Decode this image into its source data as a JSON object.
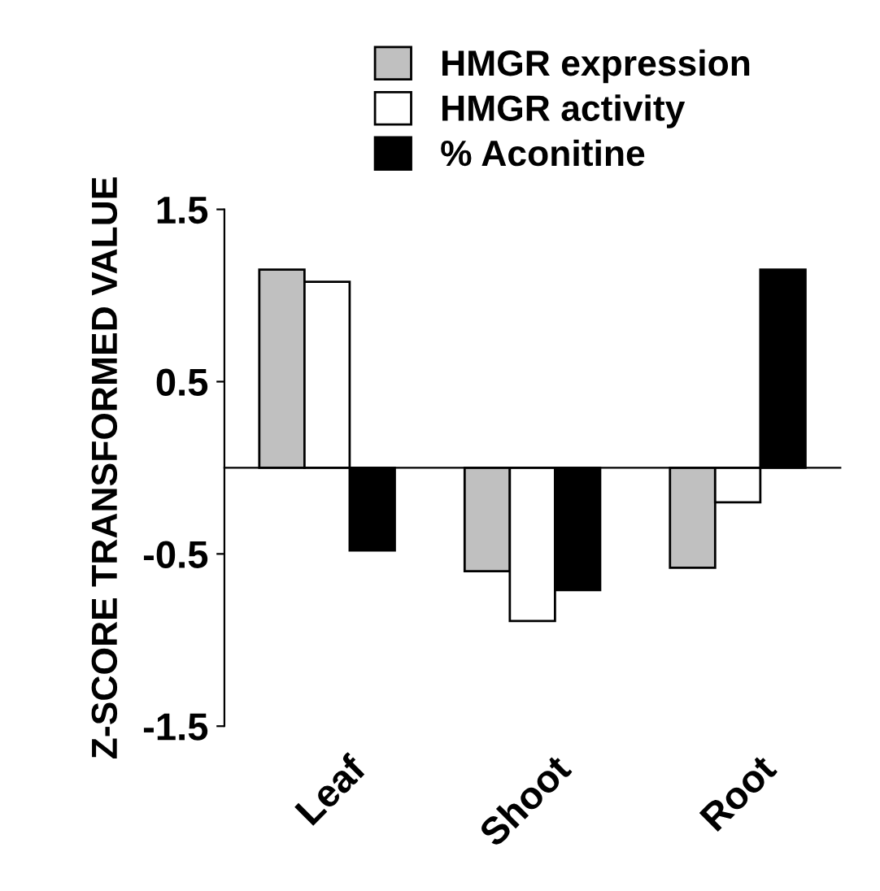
{
  "chart_data": {
    "type": "bar",
    "ylabel": "Z-SCORE TRANSFORMED VALUE",
    "categories": [
      "Leaf",
      "Shoot",
      "Root"
    ],
    "series": [
      {
        "name": "HMGR expression",
        "color": "#c0c0c0",
        "values": [
          1.15,
          -0.6,
          -0.58
        ]
      },
      {
        "name": "HMGR activity",
        "color": "#ffffff",
        "values": [
          1.08,
          -0.89,
          -0.2
        ]
      },
      {
        "name": "% Aconitine",
        "color": "#000000",
        "values": [
          -0.48,
          -0.71,
          1.15
        ]
      }
    ],
    "ylim": [
      -1.5,
      1.5
    ],
    "yticks": [
      1.5,
      0.5,
      -0.5,
      -1.5
    ],
    "grid": false,
    "legend": "top"
  }
}
